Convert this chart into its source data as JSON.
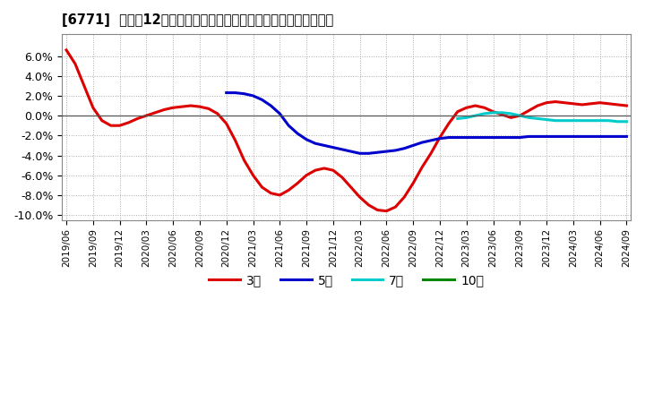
{
  "title": "[6771]  売上高12か月移動合計の対前年同期増減率の平均値の推移",
  "ylim": [
    -0.105,
    0.082
  ],
  "yticks": [
    -0.1,
    -0.08,
    -0.06,
    -0.04,
    -0.02,
    0.0,
    0.02,
    0.04,
    0.06
  ],
  "ytick_labels": [
    "-10.0%",
    "-8.0%",
    "-6.0%",
    "-4.0%",
    "-2.0%",
    "0.0%",
    "2.0%",
    "4.0%",
    "6.0%"
  ],
  "background_color": "#ffffff",
  "grid_color": "#b0b0b0",
  "series_3year": {
    "color": "#dd0000",
    "label": "3年",
    "x": [
      0,
      1,
      2,
      3,
      4,
      5,
      6,
      7,
      8,
      9,
      10,
      11,
      12,
      13,
      14,
      15,
      16,
      17,
      18,
      19,
      20,
      21,
      22,
      23,
      24,
      25,
      26,
      27,
      28,
      29,
      30,
      31,
      32,
      33,
      34,
      35,
      36,
      37,
      38,
      39,
      40,
      41,
      42,
      43,
      44,
      45,
      46,
      47,
      48,
      49,
      50,
      51,
      52,
      53,
      54,
      55,
      56,
      57,
      58,
      59,
      60,
      61,
      62,
      63
    ],
    "y": [
      0.066,
      0.052,
      0.03,
      0.008,
      -0.005,
      -0.01,
      -0.01,
      -0.007,
      -0.003,
      0.0,
      0.003,
      0.006,
      0.008,
      0.009,
      0.01,
      0.009,
      0.007,
      0.002,
      -0.008,
      -0.025,
      -0.045,
      -0.06,
      -0.072,
      -0.078,
      -0.08,
      -0.075,
      -0.068,
      -0.06,
      -0.055,
      -0.053,
      -0.055,
      -0.062,
      -0.072,
      -0.082,
      -0.09,
      -0.095,
      -0.096,
      -0.092,
      -0.082,
      -0.068,
      -0.052,
      -0.038,
      -0.022,
      -0.008,
      0.004,
      0.008,
      0.01,
      0.008,
      0.004,
      0.001,
      -0.002,
      0.0,
      0.005,
      0.01,
      0.013,
      0.014,
      0.013,
      0.012,
      0.011,
      0.012,
      0.013,
      0.012,
      0.011,
      0.01
    ]
  },
  "series_5year": {
    "color": "#0000cc",
    "label": "5年",
    "x": [
      18,
      19,
      20,
      21,
      22,
      23,
      24,
      25,
      26,
      27,
      28,
      29,
      30,
      31,
      32,
      33,
      34,
      35,
      36,
      37,
      38,
      39,
      40,
      41,
      42,
      43,
      44,
      45,
      46,
      47,
      48,
      49,
      50,
      51,
      52,
      53,
      54,
      55,
      56,
      57,
      58,
      59,
      60,
      61,
      62,
      63
    ],
    "y": [
      0.023,
      0.023,
      0.022,
      0.02,
      0.016,
      0.01,
      0.002,
      -0.01,
      -0.018,
      -0.024,
      -0.028,
      -0.03,
      -0.032,
      -0.034,
      -0.036,
      -0.038,
      -0.038,
      -0.037,
      -0.036,
      -0.035,
      -0.033,
      -0.03,
      -0.027,
      -0.025,
      -0.023,
      -0.022,
      -0.022,
      -0.022,
      -0.022,
      -0.022,
      -0.022,
      -0.022,
      -0.022,
      -0.022,
      -0.021,
      -0.021,
      -0.021,
      -0.021,
      -0.021,
      -0.021,
      -0.021,
      -0.021,
      -0.021,
      -0.021,
      -0.021,
      -0.021
    ]
  },
  "series_7year": {
    "color": "#00cccc",
    "label": "7年",
    "x": [
      44,
      45,
      46,
      47,
      48,
      49,
      50,
      51,
      52,
      53,
      54,
      55,
      56,
      57,
      58,
      59,
      60,
      61,
      62,
      63
    ],
    "y": [
      -0.003,
      -0.002,
      0.0,
      0.002,
      0.003,
      0.003,
      0.002,
      0.0,
      -0.002,
      -0.003,
      -0.004,
      -0.005,
      -0.005,
      -0.005,
      -0.005,
      -0.005,
      -0.005,
      -0.005,
      -0.006,
      -0.006
    ]
  },
  "series_10year": {
    "color": "#008800",
    "label": "10年",
    "x": [],
    "y": []
  },
  "x_tick_positions": [
    0,
    3,
    6,
    9,
    12,
    15,
    18,
    21,
    24,
    27,
    30,
    33,
    36,
    39,
    42,
    45,
    48,
    51,
    54,
    57,
    60,
    63
  ],
  "x_tick_labels": [
    "2019/06",
    "2019/09",
    "2019/12",
    "2020/03",
    "2020/06",
    "2020/09",
    "2020/12",
    "2021/03",
    "2021/06",
    "2021/09",
    "2021/12",
    "2022/03",
    "2022/06",
    "2022/09",
    "2022/12",
    "2023/03",
    "2023/06",
    "2023/09",
    "2023/12",
    "2024/03",
    "2024/06",
    "2024/09"
  ]
}
